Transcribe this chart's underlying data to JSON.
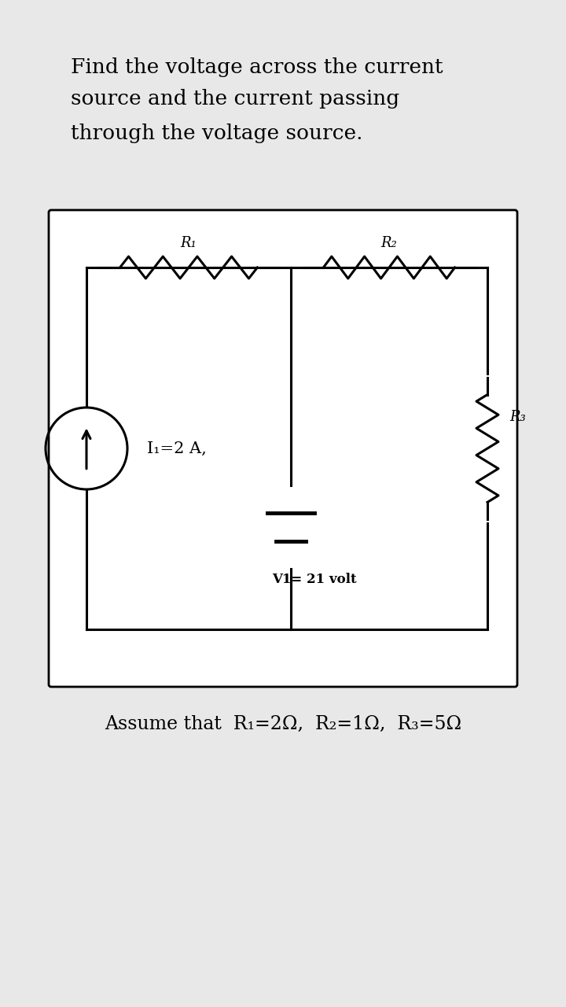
{
  "title_line1": "Find the voltage across the current",
  "title_line2": "source and the current passing",
  "title_line3": "through the voltage source.",
  "assumption": "Assume that  R₁=2Ω,  R₂=1Ω,  R₃=5Ω",
  "current_source_label": "I₁=2 A,",
  "voltage_source_label": "V1= 21 volt",
  "R1_label": "R₁",
  "R2_label": "R₂",
  "R3_label": "R₃",
  "bg_color": "#e8e8e8",
  "circuit_bg": "#ffffff",
  "line_color": "#000000",
  "text_color": "#000000",
  "title_fontsize": 19,
  "label_fontsize": 13,
  "assume_fontsize": 17
}
